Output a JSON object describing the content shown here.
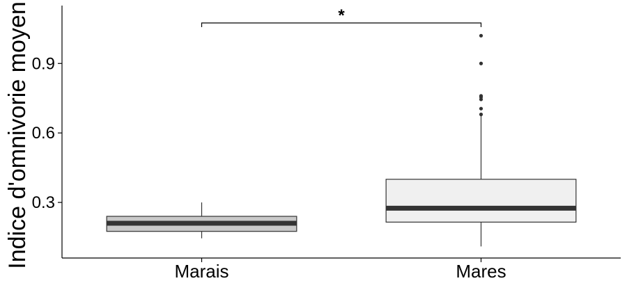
{
  "chart_data": {
    "type": "box",
    "title": "",
    "xlabel": "",
    "ylabel": "Indice d'omnivorie moyen",
    "categories": [
      "Marais",
      "Mares"
    ],
    "ylim": [
      0.06,
      1.15
    ],
    "yticks": [
      0.3,
      0.6,
      0.9
    ],
    "ytick_labels": [
      "0.3",
      "0.6",
      "0.9"
    ],
    "grid": false,
    "legend": "none",
    "boxes": [
      {
        "category": "Marais",
        "whisker_low": 0.145,
        "q1": 0.175,
        "median": 0.21,
        "q3": 0.24,
        "whisker_high": 0.3,
        "outliers": [],
        "fill": "#c8c8c8"
      },
      {
        "category": "Mares",
        "whisker_low": 0.11,
        "q1": 0.215,
        "median": 0.275,
        "q3": 0.4,
        "whisker_high": 0.675,
        "outliers": [
          0.68,
          0.705,
          0.745,
          0.755,
          0.76,
          0.9,
          1.02
        ],
        "fill": "#f0f0f0"
      }
    ],
    "significance": {
      "from": "Marais",
      "to": "Mares",
      "y": 1.075,
      "label": "*"
    },
    "colors": {
      "median": "#333333",
      "outline": "#333333",
      "outlier": "#333333"
    }
  }
}
